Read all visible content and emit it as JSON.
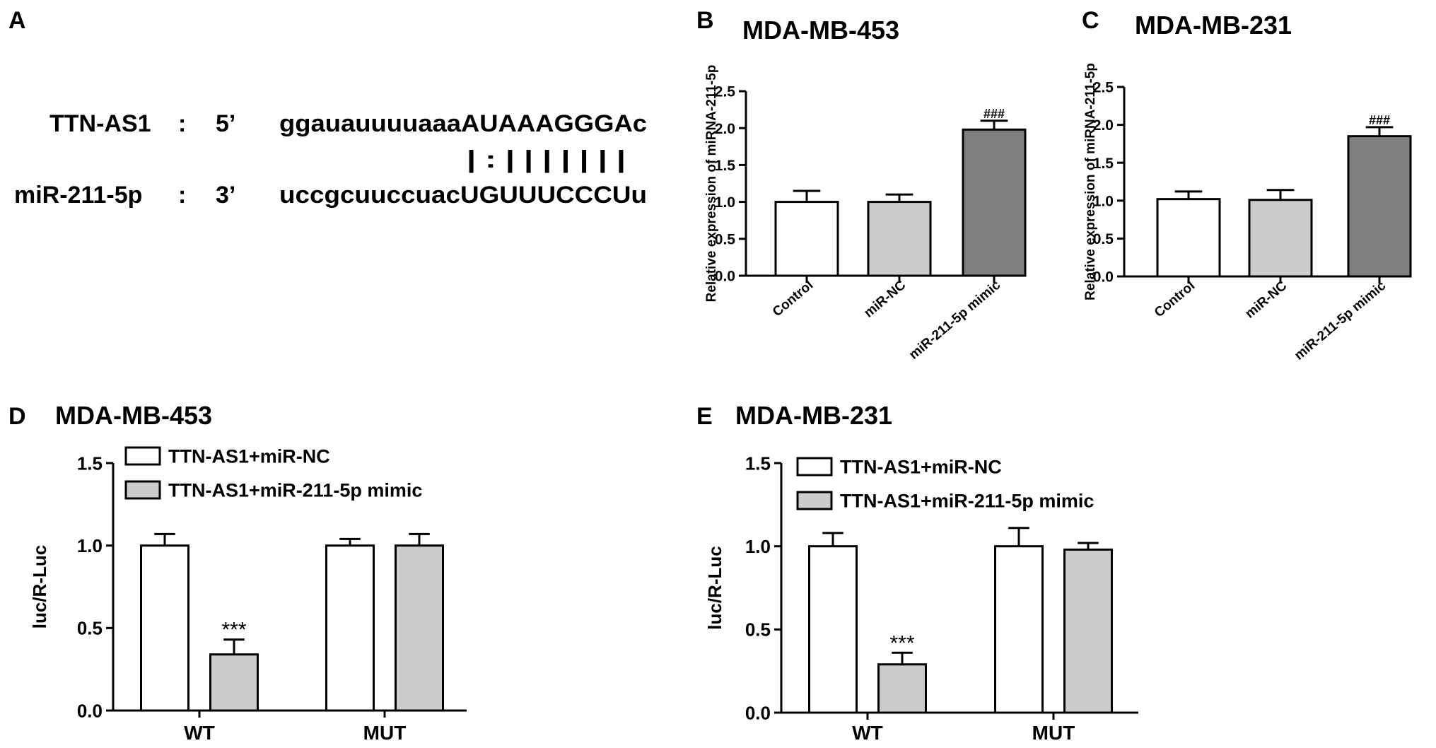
{
  "panel_a": {
    "letter": "A",
    "row1": {
      "name": "TTN-AS1",
      "sep": ":",
      "end": "5’",
      "sequence": "ggauauuuuaaaAUAAAGGGAc"
    },
    "pairing": "| : | | | | | | |",
    "row2": {
      "name": "miR-211-5p",
      "sep": ":",
      "end": "3’",
      "sequence": "uccgcuuccuacUGUUUCCCUu"
    }
  },
  "colors": {
    "white_bar": "#ffffff",
    "light_bar": "#cccccc",
    "dark_bar": "#7f7f7f",
    "axis": "#000000"
  },
  "chart_data": [
    {
      "panel": "B",
      "type": "bar",
      "title": "MDA-MB-453",
      "ylabel": "Relative expression of miRNA-211-5p",
      "xlabel": "",
      "ylim": [
        0,
        2.5
      ],
      "yticks": [
        "0.0",
        "0.5",
        "1.0",
        "1.5",
        "2.0",
        "2.5"
      ],
      "categories": [
        "Control",
        "miR-NC",
        "miR-211-5p mimic"
      ],
      "values": [
        1.0,
        1.0,
        1.98
      ],
      "errors": [
        0.15,
        0.1,
        0.12
      ],
      "annotations": [
        "",
        "",
        "###"
      ]
    },
    {
      "panel": "C",
      "type": "bar",
      "title": "MDA-MB-231",
      "ylabel": "Relative expression of miRNA-211-5p",
      "xlabel": "",
      "ylim": [
        0,
        2.5
      ],
      "yticks": [
        "0.0",
        "0.5",
        "1.0",
        "1.5",
        "2.0",
        "2.5"
      ],
      "categories": [
        "Control",
        "miR-NC",
        "miR-211-5p mimic"
      ],
      "values": [
        1.02,
        1.01,
        1.85
      ],
      "errors": [
        0.1,
        0.13,
        0.12
      ],
      "annotations": [
        "",
        "",
        "###"
      ]
    },
    {
      "panel": "D",
      "type": "bar",
      "title": "MDA-MB-453",
      "ylabel": "luc/R-Luc",
      "xlabel": "",
      "ylim": [
        0,
        1.5
      ],
      "yticks": [
        "0.0",
        "0.5",
        "1.0",
        "1.5"
      ],
      "categories": [
        "WT",
        "MUT"
      ],
      "series": [
        {
          "name": "TTN-AS1+miR-NC",
          "values": [
            1.0,
            1.0
          ],
          "errors": [
            0.07,
            0.04
          ],
          "annotations": [
            "",
            ""
          ]
        },
        {
          "name": "TTN-AS1+miR-211-5p mimic",
          "values": [
            0.34,
            1.0
          ],
          "errors": [
            0.09,
            0.07
          ],
          "annotations": [
            "***",
            ""
          ]
        }
      ],
      "legend_position": "top-left"
    },
    {
      "panel": "E",
      "type": "bar",
      "title": "MDA-MB-231",
      "ylabel": "luc/R-Luc",
      "xlabel": "",
      "ylim": [
        0,
        1.5
      ],
      "yticks": [
        "0.0",
        "0.5",
        "1.0",
        "1.5"
      ],
      "categories": [
        "WT",
        "MUT"
      ],
      "series": [
        {
          "name": "TTN-AS1+miR-NC",
          "values": [
            1.0,
            1.0
          ],
          "errors": [
            0.08,
            0.11
          ],
          "annotations": [
            "",
            ""
          ]
        },
        {
          "name": "TTN-AS1+miR-211-5p mimic",
          "values": [
            0.29,
            0.98
          ],
          "errors": [
            0.07,
            0.04
          ],
          "annotations": [
            "***",
            ""
          ]
        }
      ],
      "legend_position": "top-left"
    }
  ]
}
